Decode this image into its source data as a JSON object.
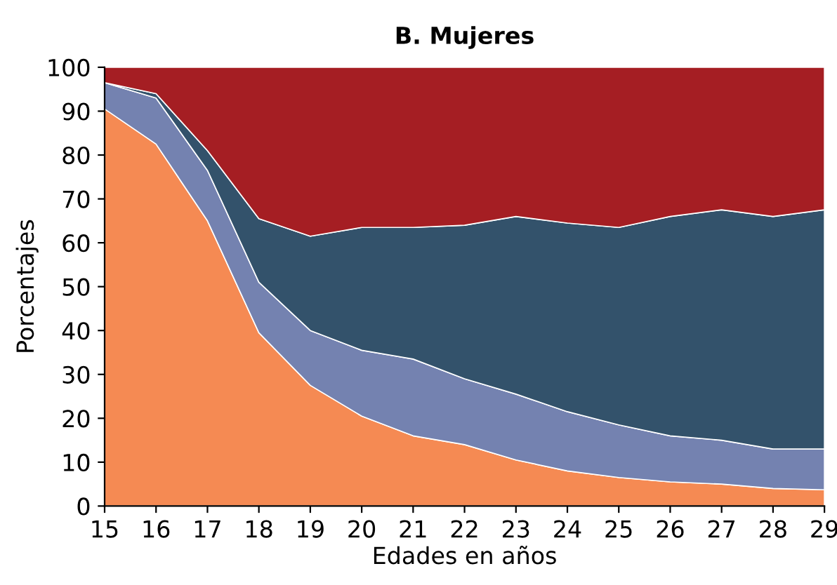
{
  "chart_data": {
    "type": "area",
    "stacked": true,
    "title": "B. Mujeres",
    "xlabel": "Edades en años",
    "ylabel": "Porcentajes",
    "x": [
      15,
      16,
      17,
      18,
      19,
      20,
      21,
      22,
      23,
      24,
      25,
      26,
      27,
      28,
      29
    ],
    "xlim": [
      15,
      29
    ],
    "xticks": [
      15,
      16,
      17,
      18,
      19,
      20,
      21,
      22,
      23,
      24,
      25,
      26,
      27,
      28,
      29
    ],
    "ylim": [
      0,
      100
    ],
    "yticks": [
      0,
      10,
      20,
      30,
      40,
      50,
      60,
      70,
      80,
      90,
      100
    ],
    "series": [
      {
        "color": "#f58a53",
        "values": [
          90.5,
          82.5,
          65,
          39.5,
          27.5,
          20.5,
          16,
          14,
          10.5,
          8,
          6.5,
          5.5,
          5,
          4,
          3.7
        ]
      },
      {
        "color": "#7482b0",
        "values": [
          6,
          10.5,
          11.5,
          11.5,
          12.5,
          15,
          17.5,
          15,
          15,
          13.5,
          12,
          10.5,
          10,
          9,
          9.3
        ]
      },
      {
        "color": "#33526b",
        "values": [
          0,
          1,
          4.5,
          14.5,
          21.5,
          28,
          30,
          35,
          40.5,
          43,
          45,
          50,
          52.5,
          53,
          54.5
        ]
      },
      {
        "color": "#a51e23",
        "values": [
          3.5,
          6,
          19,
          34.5,
          38.5,
          36.5,
          36.5,
          36,
          34,
          35.5,
          36.5,
          34,
          32.5,
          34,
          32.5
        ]
      }
    ]
  }
}
